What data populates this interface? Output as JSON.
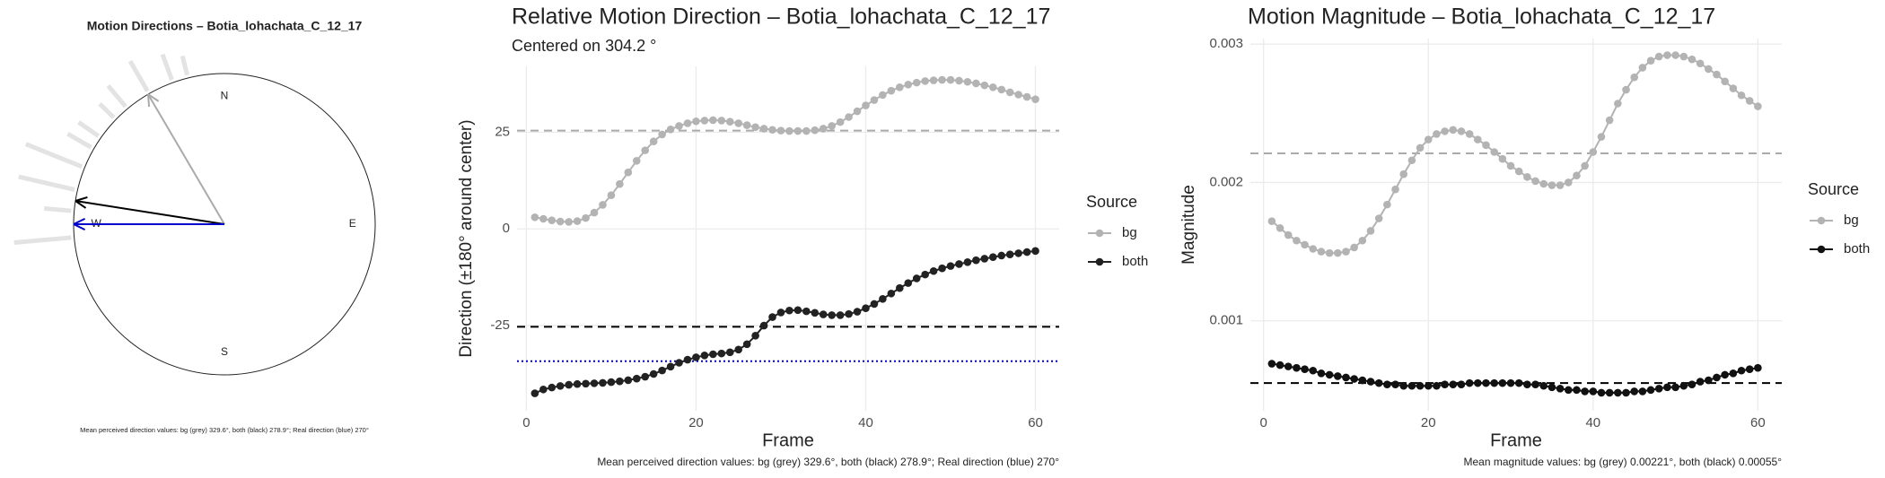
{
  "chart_data": [
    {
      "type": "polar",
      "title": "Motion Directions – Botia_lohachata_C_12_17",
      "caption": "Mean perceived direction values: bg (grey) 329.6°, both (black) 278.9°; Real direction (blue) 270°",
      "directions": [
        {
          "label": "N",
          "angle": 0
        },
        {
          "label": "E",
          "angle": 90
        },
        {
          "label": "S",
          "angle": 180
        },
        {
          "label": "W",
          "angle": 270
        }
      ],
      "arrows": [
        {
          "name": "bg",
          "color": "#aaaaaa",
          "angle": 329.6
        },
        {
          "name": "both",
          "color": "#000000",
          "angle": 278.9
        },
        {
          "name": "real",
          "color": "#0000cc",
          "angle": 270
        }
      ],
      "rose": {
        "color": "#e3e3e3",
        "angles": [
          265,
          275,
          283,
          292,
          300,
          305,
          314,
          320,
          330,
          340,
          346
        ],
        "lengths": [
          1.4,
          1.2,
          1.4,
          1.42,
          1.2,
          1.18,
          1.15,
          1.2,
          1.25,
          1.2,
          1.15
        ]
      }
    },
    {
      "type": "line",
      "title": "Relative Motion Direction – Botia_lohachata_C_12_17",
      "subtitle": "Centered on  304.2 °",
      "x_label": "Frame",
      "y_label": "Direction (±180° around center)",
      "caption": "Mean perceived direction values: bg (grey) 329.6°, both (black) 278.9°; Real direction (blue) 270°",
      "legend_title": "Source",
      "x": [
        1,
        2,
        3,
        4,
        5,
        6,
        7,
        8,
        9,
        10,
        11,
        12,
        13,
        14,
        15,
        16,
        17,
        18,
        19,
        20,
        21,
        22,
        23,
        24,
        25,
        26,
        27,
        28,
        29,
        30,
        31,
        32,
        33,
        34,
        35,
        36,
        37,
        38,
        39,
        40,
        41,
        42,
        43,
        44,
        45,
        46,
        47,
        48,
        49,
        50,
        51,
        52,
        53,
        54,
        55,
        56,
        57,
        58,
        59,
        60
      ],
      "series": [
        {
          "name": "bg",
          "color": "#b3b3b3",
          "values": [
            3.0,
            2.6,
            2.2,
            1.9,
            1.8,
            2.0,
            2.8,
            4.2,
            6.2,
            8.7,
            11.6,
            14.6,
            17.6,
            20.3,
            22.6,
            24.4,
            25.7,
            26.6,
            27.3,
            27.8,
            28.0,
            28.1,
            28.0,
            27.7,
            27.3,
            26.8,
            26.3,
            25.9,
            25.6,
            25.4,
            25.3,
            25.3,
            25.3,
            25.5,
            25.9,
            26.6,
            27.6,
            28.9,
            30.4,
            31.9,
            33.3,
            34.6,
            35.7,
            36.6,
            37.3,
            37.8,
            38.2,
            38.4,
            38.5,
            38.5,
            38.3,
            38.0,
            37.6,
            37.1,
            36.6,
            36.0,
            35.3,
            34.7,
            34.1,
            33.5
          ]
        },
        {
          "name": "both",
          "color": "#222222",
          "values": [
            -42.5,
            -41.5,
            -41,
            -40.6,
            -40.3,
            -40.1,
            -40,
            -39.9,
            -39.8,
            -39.6,
            -39.4,
            -39.1,
            -38.7,
            -38.2,
            -37.5,
            -36.6,
            -35.6,
            -34.6,
            -33.8,
            -33.2,
            -32.7,
            -32.4,
            -32.2,
            -31.9,
            -31.2,
            -29.8,
            -27.6,
            -25.0,
            -22.8,
            -21.6,
            -21.1,
            -21.0,
            -21.3,
            -21.7,
            -22.1,
            -22.3,
            -22.3,
            -22.0,
            -21.4,
            -20.5,
            -19.4,
            -18.1,
            -16.7,
            -15.3,
            -14.0,
            -12.8,
            -11.8,
            -10.9,
            -10.2,
            -9.6,
            -9.1,
            -8.6,
            -8.1,
            -7.7,
            -7.3,
            -6.9,
            -6.6,
            -6.3,
            -6.0,
            -5.7
          ]
        }
      ],
      "hlines": [
        {
          "value": 25.4,
          "color": "#aaaaaa",
          "style": "dashed"
        },
        {
          "value": -25.3,
          "color": "#000000",
          "style": "dashed"
        },
        {
          "value": -34.2,
          "color": "#0000cc",
          "style": "dotted"
        }
      ],
      "xlim": [
        -1.1,
        62.8
      ],
      "xticks": [
        0,
        20,
        40,
        60
      ],
      "ylim": [
        -47,
        42
      ],
      "yticks": [
        -25,
        0,
        25
      ],
      "grid": true
    },
    {
      "type": "line",
      "title": "Motion Magnitude – Botia_lohachata_C_12_17",
      "x_label": "Frame",
      "y_label": "Magnitude",
      "caption": "Mean magnitude values: bg (grey) 0.00221°, both (black) 0.00055°",
      "legend_title": "Source",
      "x": [
        1,
        2,
        3,
        4,
        5,
        6,
        7,
        8,
        9,
        10,
        11,
        12,
        13,
        14,
        15,
        16,
        17,
        18,
        19,
        20,
        21,
        22,
        23,
        24,
        25,
        26,
        27,
        28,
        29,
        30,
        31,
        32,
        33,
        34,
        35,
        36,
        37,
        38,
        39,
        40,
        41,
        42,
        43,
        44,
        45,
        46,
        47,
        48,
        49,
        50,
        51,
        52,
        53,
        54,
        55,
        56,
        57,
        58,
        59,
        60
      ],
      "series": [
        {
          "name": "bg",
          "color": "#b3b3b3",
          "values": [
            0.00172,
            0.00167,
            0.00162,
            0.00158,
            0.00155,
            0.00152,
            0.0015,
            0.00149,
            0.00149,
            0.0015,
            0.00153,
            0.00158,
            0.00165,
            0.00174,
            0.00184,
            0.00195,
            0.00206,
            0.00216,
            0.00225,
            0.00231,
            0.00235,
            0.00237,
            0.00238,
            0.00237,
            0.00235,
            0.00231,
            0.00227,
            0.00222,
            0.00217,
            0.00212,
            0.00208,
            0.00204,
            0.00201,
            0.00199,
            0.00198,
            0.00198,
            0.002,
            0.00205,
            0.00212,
            0.00222,
            0.00233,
            0.00245,
            0.00257,
            0.00267,
            0.00276,
            0.00283,
            0.00288,
            0.00291,
            0.00292,
            0.00292,
            0.00291,
            0.00289,
            0.00286,
            0.00282,
            0.00278,
            0.00273,
            0.00268,
            0.00263,
            0.00259,
            0.00255
          ]
        },
        {
          "name": "both",
          "color": "#111111",
          "values": [
            0.00069,
            0.00068,
            0.00067,
            0.00066,
            0.00065,
            0.00064,
            0.00062,
            0.00061,
            0.0006,
            0.00059,
            0.00058,
            0.00057,
            0.00056,
            0.00055,
            0.00054,
            0.00054,
            0.00053,
            0.00053,
            0.00053,
            0.00053,
            0.00053,
            0.00054,
            0.00054,
            0.00054,
            0.00055,
            0.00055,
            0.00055,
            0.00055,
            0.00055,
            0.00055,
            0.00055,
            0.00054,
            0.00054,
            0.00053,
            0.00052,
            0.00051,
            0.0005,
            0.0005,
            0.00049,
            0.00049,
            0.00048,
            0.00048,
            0.00048,
            0.00048,
            0.00049,
            0.00049,
            0.0005,
            0.00051,
            0.00052,
            0.00052,
            0.00053,
            0.00054,
            0.00056,
            0.00057,
            0.00059,
            0.00061,
            0.00062,
            0.00064,
            0.00065,
            0.00066
          ]
        }
      ],
      "hlines": [
        {
          "value": 0.00221,
          "color": "#aaaaaa",
          "style": "dashed"
        },
        {
          "value": 0.00055,
          "color": "#000000",
          "style": "dashed"
        }
      ],
      "xlim": [
        -1.6,
        62.9
      ],
      "xticks": [
        0,
        20,
        40,
        60
      ],
      "ylim": [
        0.00035,
        0.00304
      ],
      "yticks": [
        0.001,
        0.002,
        0.003
      ],
      "grid": true
    }
  ]
}
